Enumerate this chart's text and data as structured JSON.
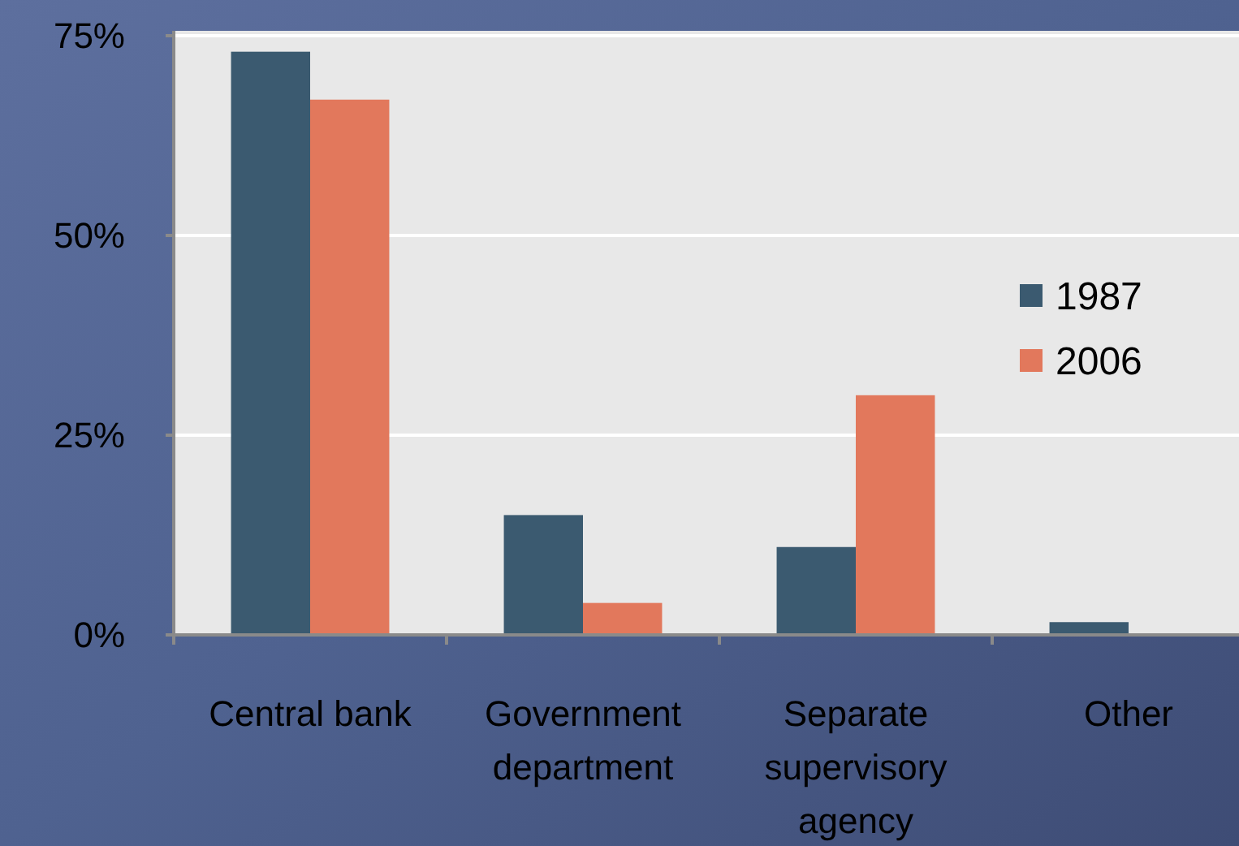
{
  "chart_data": {
    "type": "bar",
    "categories": [
      "Central bank",
      "Government department",
      "Separate supervisory agency",
      "Other"
    ],
    "series": [
      {
        "name": "1987",
        "color": "#3b5a70",
        "values": [
          73,
          15,
          11,
          1.6
        ]
      },
      {
        "name": "2006",
        "color": "#e2785c",
        "values": [
          67,
          4,
          30,
          0
        ]
      }
    ],
    "ylim": [
      0,
      75
    ],
    "yticks": [
      {
        "value": 0,
        "label": "0%"
      },
      {
        "value": 25,
        "label": "25%"
      },
      {
        "value": 50,
        "label": "50%"
      },
      {
        "value": 75,
        "label": "75%"
      }
    ],
    "grid": "y",
    "legend": "right"
  }
}
